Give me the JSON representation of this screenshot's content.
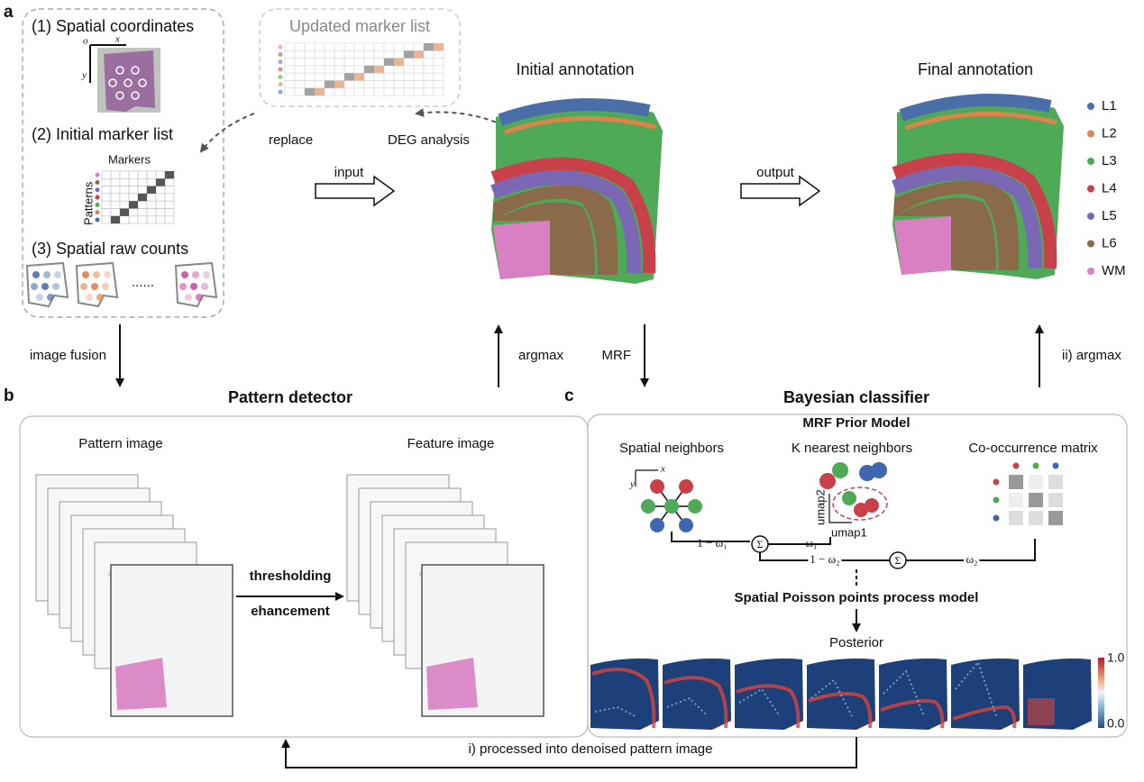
{
  "panel_labels": [
    "a",
    "b",
    "c"
  ],
  "panel_a": {
    "spatial_coordinates": "(1) Spatial coordinates",
    "axis_o": "o",
    "axis_x": "x",
    "axis_y": "y",
    "initial_marker_list": "(2) Initial marker list",
    "markers": "Markers",
    "patterns": "Patterns",
    "spatial_raw_counts": "(3) Spatial raw counts",
    "ellipsis": "......",
    "updated_marker_list": "Updated marker list",
    "replace": "replace",
    "deg_analysis": "DEG analysis",
    "input": "input",
    "initial_annotation": "Initial annotation",
    "output": "output",
    "final_annotation": "Final annotation",
    "legend": [
      {
        "label": "L1",
        "color": "#4a6fa8"
      },
      {
        "label": "L2",
        "color": "#e0834a"
      },
      {
        "label": "L3",
        "color": "#4faa57"
      },
      {
        "label": "L4",
        "color": "#c8404a"
      },
      {
        "label": "L5",
        "color": "#7b68b4"
      },
      {
        "label": "L6",
        "color": "#8b6a4c"
      },
      {
        "label": "WM",
        "color": "#d980c4"
      }
    ]
  },
  "arrows": {
    "image_fusion": "image fusion",
    "argmax": "argmax",
    "mrf": "MRF",
    "ii_argmax": "ii) argmax",
    "denoised": "i) processed into denoised pattern image"
  },
  "panel_b": {
    "title": "Pattern detector",
    "pattern_image": "Pattern image",
    "feature_image": "Feature image",
    "thresholding": "thresholding",
    "enhancement": "ehancement"
  },
  "panel_c": {
    "title": "Bayesian classifier",
    "mrf_prior": "MRF Prior Model",
    "spatial_neighbors": "Spatial neighbors",
    "knn": "K nearest neighbors",
    "cooccurrence": "Co-occurrence matrix",
    "axis_x": "x",
    "axis_y": "y",
    "umap2": "umap2",
    "umap1": "umap1",
    "one_minus_w1": "1 − ω₁",
    "w1": "ω₁",
    "one_minus_w2": "1 − ω₂",
    "w2": "ω₂",
    "sigma": "Σ",
    "poisson": "Spatial Poisson points process model",
    "posterior": "Posterior",
    "colorbar_max": "1.0",
    "colorbar_min": "0.0"
  }
}
